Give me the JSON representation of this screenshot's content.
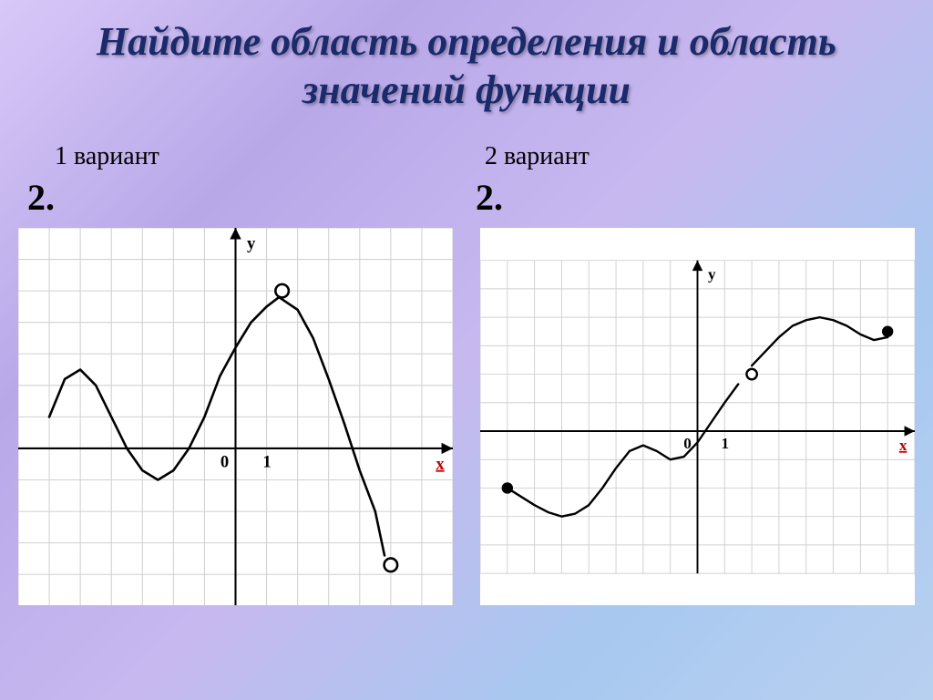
{
  "title": "Найдите область определения и область значений функции",
  "variants": {
    "left": "1 вариант",
    "right": "2 вариант"
  },
  "task_numbers": {
    "left": "2.",
    "right": "2."
  },
  "chart_left": {
    "type": "line",
    "grid": {
      "xmin": -7,
      "xmax": 7,
      "ymin": -5,
      "ymax": 7,
      "step": 1
    },
    "grid_color": "#d0d0d0",
    "axis_color": "#000000",
    "axis_width": 2,
    "curve_color": "#000000",
    "curve_width": 2.5,
    "axis_labels": {
      "x": "x",
      "y": "y",
      "origin": "0",
      "one": "1"
    },
    "label_fontsize": 18,
    "label_color": "#000000",
    "x_label_color": "#bf0000",
    "curve_points": [
      [
        -6,
        1
      ],
      [
        -5.5,
        2.2
      ],
      [
        -5,
        2.5
      ],
      [
        -4.5,
        2
      ],
      [
        -4,
        1
      ],
      [
        -3.5,
        0
      ],
      [
        -3,
        -0.7
      ],
      [
        -2.5,
        -1
      ],
      [
        -2,
        -0.7
      ],
      [
        -1.5,
        0
      ],
      [
        -1,
        1
      ],
      [
        -0.5,
        2.3
      ],
      [
        0,
        3.2
      ],
      [
        0.5,
        4
      ],
      [
        1,
        4.5
      ],
      [
        1.4,
        4.8
      ],
      [
        2,
        4.4
      ],
      [
        2.5,
        3.5
      ],
      [
        3,
        2.2
      ],
      [
        3.5,
        0.8
      ],
      [
        4,
        -0.7
      ],
      [
        4.5,
        -2
      ],
      [
        4.8,
        -3.4
      ]
    ],
    "open_points": [
      {
        "x": 1.5,
        "y": 5
      },
      {
        "x": 5,
        "y": -3.7
      }
    ],
    "point_radius": 7,
    "point_fill": "#ffffff"
  },
  "chart_right": {
    "type": "line",
    "grid": {
      "xmin": -8,
      "xmax": 8,
      "ymin": -5,
      "ymax": 6,
      "step": 1
    },
    "grid_color": "#d0d0d0",
    "axis_color": "#000000",
    "axis_width": 2,
    "curve_color": "#000000",
    "curve_width": 2.5,
    "axis_labels": {
      "x": "x",
      "y": "y",
      "origin": "0",
      "one": "1"
    },
    "label_fontsize": 18,
    "label_color": "#000000",
    "x_label_color": "#bf0000",
    "curve1_points": [
      [
        -7,
        -2
      ],
      [
        -6.5,
        -2.3
      ],
      [
        -6,
        -2.6
      ],
      [
        -5.5,
        -2.85
      ],
      [
        -5,
        -3
      ],
      [
        -4.5,
        -2.9
      ],
      [
        -4,
        -2.6
      ],
      [
        -3.5,
        -2
      ],
      [
        -3,
        -1.3
      ],
      [
        -2.5,
        -0.7
      ],
      [
        -2,
        -0.5
      ],
      [
        -1.5,
        -0.7
      ],
      [
        -1,
        -1
      ],
      [
        -0.5,
        -0.9
      ],
      [
        0,
        -0.4
      ],
      [
        0.5,
        0.3
      ],
      [
        1,
        1
      ],
      [
        1.5,
        1.65
      ]
    ],
    "curve2_points": [
      [
        2,
        2.3
      ],
      [
        2.5,
        2.8
      ],
      [
        3,
        3.3
      ],
      [
        3.5,
        3.7
      ],
      [
        4,
        3.9
      ],
      [
        4.5,
        4
      ],
      [
        5,
        3.9
      ],
      [
        5.5,
        3.7
      ],
      [
        6,
        3.4
      ],
      [
        6.5,
        3.2
      ],
      [
        7,
        3.3
      ]
    ],
    "open_points": [
      {
        "x": 2,
        "y": 2
      }
    ],
    "closed_points": [
      {
        "x": -7,
        "y": -2
      },
      {
        "x": 7,
        "y": 3.5
      }
    ],
    "point_radius": 6,
    "point_fill_open": "#ffffff",
    "point_fill_closed": "#000000"
  }
}
